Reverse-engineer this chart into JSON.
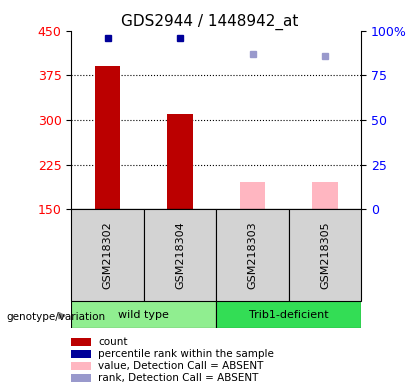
{
  "title": "GDS2944 / 1448942_at",
  "samples": [
    "GSM218302",
    "GSM218304",
    "GSM218303",
    "GSM218305"
  ],
  "counts": [
    390,
    310,
    null,
    null
  ],
  "counts_absent": [
    null,
    null,
    195,
    195
  ],
  "pct_ranks": [
    96,
    96,
    null,
    null
  ],
  "pct_ranks_absent": [
    null,
    null,
    87,
    86
  ],
  "ylim_left": [
    150,
    450
  ],
  "ylim_right": [
    0,
    100
  ],
  "yticks_left": [
    150,
    225,
    300,
    375,
    450
  ],
  "yticks_right": [
    0,
    25,
    50,
    75,
    100
  ],
  "bar_color_present": "#bb0000",
  "bar_color_absent": "#ffb6c1",
  "marker_color_present": "#000099",
  "marker_color_absent": "#9999cc",
  "bar_width": 0.35,
  "base_value": 150,
  "wt_color": "#90ee90",
  "trib_color": "#33dd55",
  "sample_box_color": "#d3d3d3",
  "legend_items": [
    {
      "label": "count",
      "color": "#bb0000"
    },
    {
      "label": "percentile rank within the sample",
      "color": "#000099"
    },
    {
      "label": "value, Detection Call = ABSENT",
      "color": "#ffb6c1"
    },
    {
      "label": "rank, Detection Call = ABSENT",
      "color": "#9999cc"
    }
  ],
  "grid_lines": [
    225,
    300,
    375
  ],
  "title_fontsize": 11
}
